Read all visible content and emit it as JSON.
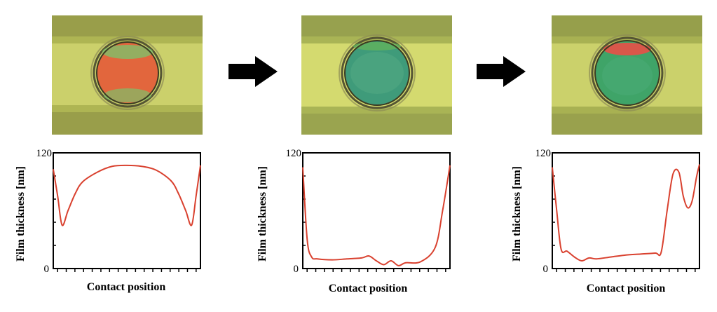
{
  "colors": {
    "curve": "#d9412f",
    "axis": "#000000",
    "arrow": "#000000",
    "photo_background": "#b9bf5a",
    "photo_band": "#c7cc66",
    "contact_ring": "#4a4a2a"
  },
  "icons": [
    "right-arrow-icon",
    "right-arrow-icon"
  ],
  "chart_data": [
    {
      "type": "line",
      "title": "",
      "xlabel": "Contact position",
      "ylabel": "Film thickness [nm]",
      "ylim": [
        0,
        120
      ],
      "yticks": [
        "0",
        "120"
      ],
      "grid": false,
      "contact_color": "orange-red",
      "series": [
        {
          "x": [
            0,
            0.03,
            0.06,
            0.1,
            0.15,
            0.2,
            0.3,
            0.4,
            0.5,
            0.6,
            0.7,
            0.8,
            0.85,
            0.9,
            0.94,
            0.97,
            1
          ],
          "y": [
            103,
            75,
            45,
            60,
            78,
            90,
            100,
            106,
            107,
            106,
            102,
            91,
            78,
            60,
            45,
            75,
            107
          ]
        }
      ]
    },
    {
      "type": "line",
      "title": "",
      "xlabel": "Contact position",
      "ylabel": "Film thickness [nm]",
      "ylim": [
        0,
        120
      ],
      "yticks": [
        "0",
        "120"
      ],
      "grid": false,
      "contact_color": "blue-green",
      "series": [
        {
          "x": [
            0,
            0.03,
            0.06,
            0.1,
            0.2,
            0.3,
            0.4,
            0.45,
            0.5,
            0.55,
            0.6,
            0.65,
            0.7,
            0.8,
            0.9,
            0.95,
            1
          ],
          "y": [
            105,
            30,
            12,
            10,
            9,
            10,
            11,
            13,
            8,
            4,
            8,
            3,
            6,
            7,
            22,
            60,
            107
          ]
        }
      ]
    },
    {
      "type": "line",
      "title": "",
      "xlabel": "Contact position",
      "ylabel": "Film thickness [nm]",
      "ylim": [
        0,
        120
      ],
      "yticks": [
        "0",
        "120"
      ],
      "grid": false,
      "contact_color": "green",
      "series": [
        {
          "x": [
            0,
            0.03,
            0.06,
            0.1,
            0.15,
            0.2,
            0.25,
            0.3,
            0.4,
            0.5,
            0.6,
            0.7,
            0.74,
            0.78,
            0.82,
            0.86,
            0.89,
            0.92,
            0.95,
            0.98,
            1
          ],
          "y": [
            105,
            60,
            20,
            18,
            12,
            8,
            11,
            10,
            12,
            14,
            15,
            16,
            17,
            60,
            98,
            100,
            75,
            63,
            70,
            95,
            108
          ]
        }
      ]
    }
  ]
}
